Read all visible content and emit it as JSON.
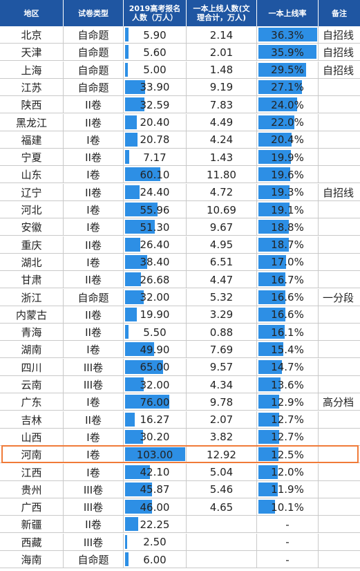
{
  "headers": [
    "地区",
    "试卷类型",
    "2019高考报名人数（万人）",
    "一本上线人数(文理合计，万人)",
    "一本上线率",
    "备注"
  ],
  "bar_color": "#2d8fe5",
  "header_color": "#1f56a2",
  "highlight_color": "#f07a38",
  "highlight_region": "河南",
  "chart_data": {
    "type": "table",
    "columns": [
      "地区",
      "试卷类型",
      "2019高考报名人数（万人）",
      "一本上线人数(文理合计，万人)",
      "一本上线率",
      "备注"
    ],
    "rows": [
      {
        "region": "北京",
        "paper": "自命题",
        "applicants": "5.90",
        "tier1": "2.14",
        "rate": "36.3%",
        "note": "自招线"
      },
      {
        "region": "天津",
        "paper": "自命题",
        "applicants": "5.60",
        "tier1": "2.01",
        "rate": "35.9%",
        "note": "自招线"
      },
      {
        "region": "上海",
        "paper": "自命题",
        "applicants": "5.00",
        "tier1": "1.48",
        "rate": "29.5%",
        "note": "自招线"
      },
      {
        "region": "江苏",
        "paper": "自命题",
        "applicants": "33.90",
        "tier1": "9.19",
        "rate": "27.1%",
        "note": ""
      },
      {
        "region": "陕西",
        "paper": "II卷",
        "applicants": "32.59",
        "tier1": "7.83",
        "rate": "24.0%",
        "note": ""
      },
      {
        "region": "黑龙江",
        "paper": "II卷",
        "applicants": "20.40",
        "tier1": "4.49",
        "rate": "22.0%",
        "note": ""
      },
      {
        "region": "福建",
        "paper": "I卷",
        "applicants": "20.78",
        "tier1": "4.24",
        "rate": "20.4%",
        "note": ""
      },
      {
        "region": "宁夏",
        "paper": "II卷",
        "applicants": "7.17",
        "tier1": "1.43",
        "rate": "19.9%",
        "note": ""
      },
      {
        "region": "山东",
        "paper": "I卷",
        "applicants": "60.10",
        "tier1": "11.80",
        "rate": "19.6%",
        "note": ""
      },
      {
        "region": "辽宁",
        "paper": "II卷",
        "applicants": "24.40",
        "tier1": "4.72",
        "rate": "19.3%",
        "note": "自招线"
      },
      {
        "region": "河北",
        "paper": "I卷",
        "applicants": "55.96",
        "tier1": "10.69",
        "rate": "19.1%",
        "note": ""
      },
      {
        "region": "安徽",
        "paper": "I卷",
        "applicants": "51.30",
        "tier1": "9.67",
        "rate": "18.8%",
        "note": ""
      },
      {
        "region": "重庆",
        "paper": "II卷",
        "applicants": "26.40",
        "tier1": "4.95",
        "rate": "18.7%",
        "note": ""
      },
      {
        "region": "湖北",
        "paper": "I卷",
        "applicants": "38.40",
        "tier1": "6.51",
        "rate": "17.0%",
        "note": ""
      },
      {
        "region": "甘肃",
        "paper": "II卷",
        "applicants": "26.68",
        "tier1": "4.47",
        "rate": "16.7%",
        "note": ""
      },
      {
        "region": "浙江",
        "paper": "自命题",
        "applicants": "32.00",
        "tier1": "5.32",
        "rate": "16.6%",
        "note": "一分段"
      },
      {
        "region": "内蒙古",
        "paper": "II卷",
        "applicants": "19.90",
        "tier1": "3.29",
        "rate": "16.6%",
        "note": ""
      },
      {
        "region": "青海",
        "paper": "II卷",
        "applicants": "5.50",
        "tier1": "0.88",
        "rate": "16.1%",
        "note": ""
      },
      {
        "region": "湖南",
        "paper": "I卷",
        "applicants": "49.90",
        "tier1": "7.69",
        "rate": "15.4%",
        "note": ""
      },
      {
        "region": "四川",
        "paper": "III卷",
        "applicants": "65.00",
        "tier1": "9.57",
        "rate": "14.7%",
        "note": ""
      },
      {
        "region": "云南",
        "paper": "III卷",
        "applicants": "32.00",
        "tier1": "4.34",
        "rate": "13.6%",
        "note": ""
      },
      {
        "region": "广东",
        "paper": "I卷",
        "applicants": "76.00",
        "tier1": "9.78",
        "rate": "12.9%",
        "note": "高分档"
      },
      {
        "region": "吉林",
        "paper": "II卷",
        "applicants": "16.27",
        "tier1": "2.07",
        "rate": "12.7%",
        "note": ""
      },
      {
        "region": "山西",
        "paper": "I卷",
        "applicants": "30.20",
        "tier1": "3.82",
        "rate": "12.7%",
        "note": ""
      },
      {
        "region": "河南",
        "paper": "I卷",
        "applicants": "103.00",
        "tier1": "12.92",
        "rate": "12.5%",
        "note": ""
      },
      {
        "region": "江西",
        "paper": "I卷",
        "applicants": "42.10",
        "tier1": "5.04",
        "rate": "12.0%",
        "note": ""
      },
      {
        "region": "贵州",
        "paper": "III卷",
        "applicants": "45.87",
        "tier1": "5.46",
        "rate": "11.9%",
        "note": ""
      },
      {
        "region": "广西",
        "paper": "III卷",
        "applicants": "46.00",
        "tier1": "4.65",
        "rate": "10.1%",
        "note": ""
      },
      {
        "region": "新疆",
        "paper": "II卷",
        "applicants": "22.25",
        "tier1": "",
        "rate": "-",
        "note": ""
      },
      {
        "region": "西藏",
        "paper": "III卷",
        "applicants": "2.50",
        "tier1": "",
        "rate": "-",
        "note": ""
      },
      {
        "region": "海南",
        "paper": "自命题",
        "applicants": "6.00",
        "tier1": "",
        "rate": "-",
        "note": ""
      }
    ]
  }
}
